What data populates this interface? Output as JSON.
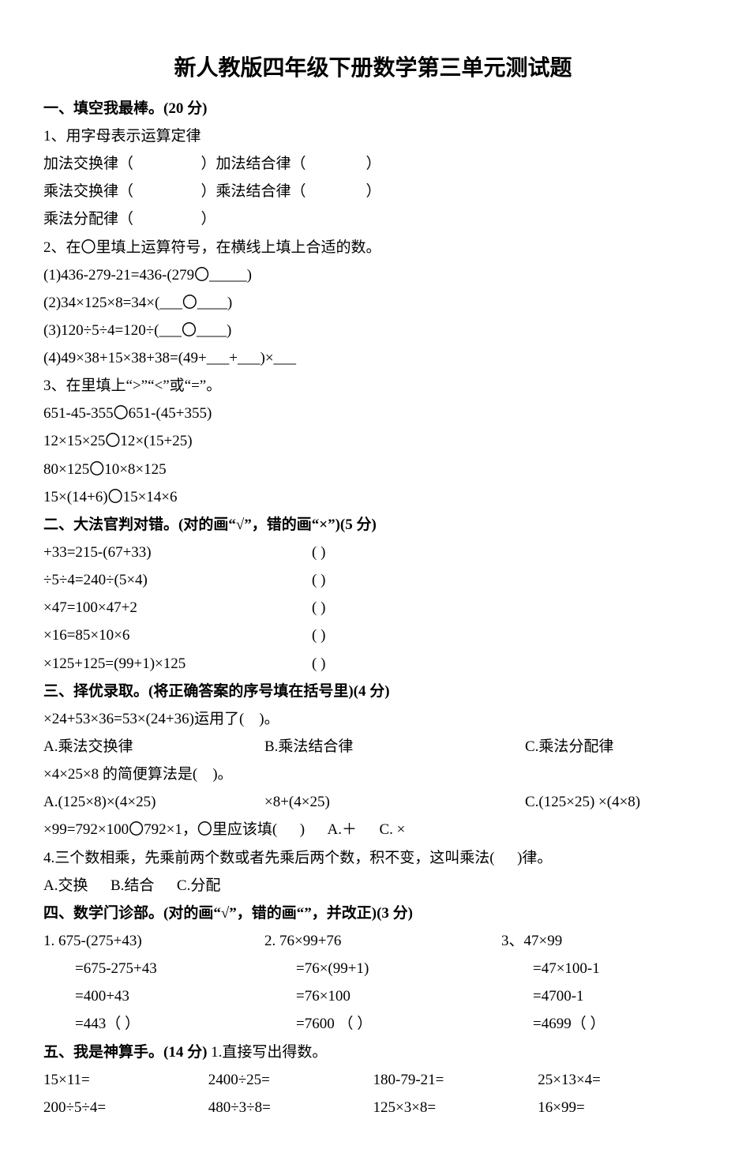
{
  "title": "新人教版四年级下册数学第三单元测试题",
  "s1": {
    "head": "一、填空我最棒。(20 分)",
    "q1_lead": "1、用字母表示运算定律",
    "q1_l1": "加法交换律（                  ）加法结合律（                ）",
    "q1_l2": "乘法交换律（                  ）乘法结合律（                ）",
    "q1_l3": "乘法分配律（                  ）",
    "q2_lead": "2、在〇里填上运算符号，在横线上填上合适的数。",
    "q2_1": "(1)436-279-21=436-(279〇_____)",
    "q2_2": "(2)34×125×8=34×(___〇____)",
    "q2_3": "(3)120÷5÷4=120÷(___〇____)",
    "q2_4": "(4)49×38+15×38+38=(49+___+___)×___",
    "q3_lead": "3、在里填上“>”“<”或“=”。",
    "q3_1": "651-45-355〇651-(45+355)",
    "q3_2": "12×15×25〇12×(15+25)",
    "q3_3": "80×125〇10×8×125",
    "q3_4": "15×(14+6)〇15×14×6"
  },
  "s2": {
    "head": "二、大法官判对错。(对的画“√”，错的画“×”)(5 分)",
    "rows": [
      {
        "l": "+33=215-(67+33)",
        "r": "(        )"
      },
      {
        "l": "÷5÷4=240÷(5×4)",
        "r": "(        )"
      },
      {
        "l": "×47=100×47+2",
        "r": "(        )"
      },
      {
        "l": "×16=85×10×6",
        "r": "(      )"
      },
      {
        "l": "×125+125=(99+1)×125",
        "r": "(        )"
      }
    ]
  },
  "s3": {
    "head": "三、择优录取。(将正确答案的序号填在括号里)(4 分)",
    "q1": "×24+53×36=53×(24+36)运用了(    )。",
    "q1a": "A.乘法交换律",
    "q1b": "B.乘法结合律",
    "q1c": "C.乘法分配律",
    "q2": "×4×25×8 的简便算法是(    )。",
    "q2a": "A.(125×8)×(4×25)",
    "q2b": "×8+(4×25)",
    "q2c": "C.(125×25) ×(4×8)",
    "q3": "×99=792×100〇792×1，〇里应该填(      )      A.＋      C. ×",
    "q4": "4.三个数相乘，先乘前两个数或者先乘后两个数，积不变，这叫乘法(      )律。",
    "q4abc": "A.交换      B.结合      C.分配"
  },
  "s4": {
    "head": "四、数学门诊部。(对的画“√”，错的画“”，并改正)(3 分)",
    "r1": {
      "c1": "1.   675-(275+43)",
      "c2": "2.   76×99+76",
      "c3": "3、47×99"
    },
    "r2": {
      "c1": "=675-275+43",
      "c2": "=76×(99+1)",
      "c3": "=47×100-1"
    },
    "r3": {
      "c1": "=400+43",
      "c2": "=76×100",
      "c3": "=4700-1"
    },
    "r4": {
      "c1": "=443（    ）",
      "c2": "=7600 （    ）",
      "c3": "=4699（    ）"
    }
  },
  "s5": {
    "head_a": "五、我是神算手。(14 分)",
    "head_b": "1.直接写出得数。",
    "row1": {
      "a": "15×11=",
      "b": "2400÷25=",
      "c": "180-79-21=",
      "d": "25×13×4="
    },
    "row2": {
      "a": "200÷5÷4=",
      "b": "480÷3÷8=",
      "c": "125×3×8=",
      "d": "16×99="
    }
  }
}
